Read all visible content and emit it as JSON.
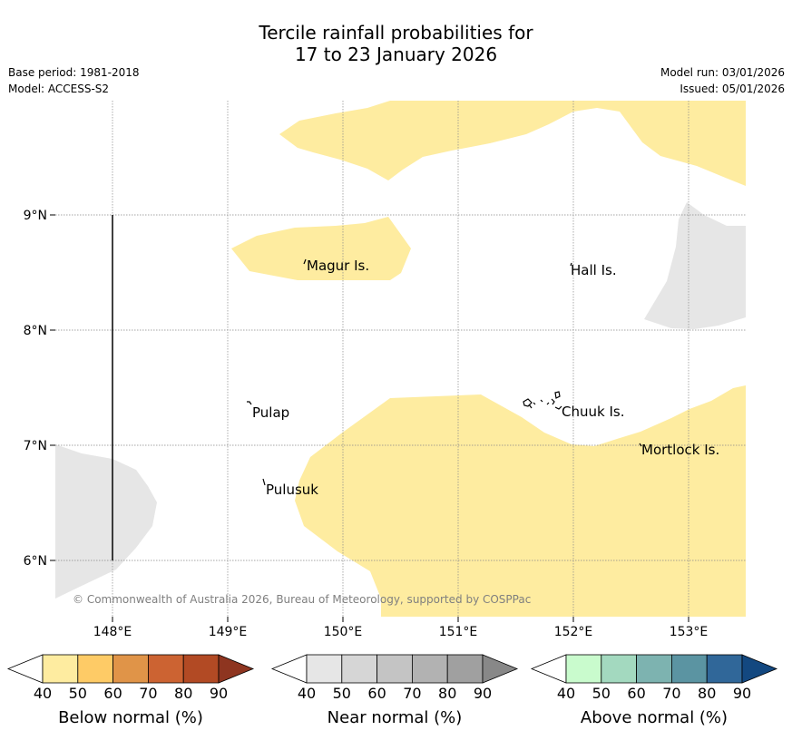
{
  "title": {
    "line1": "Tercile rainfall probabilities for",
    "line2": "17 to 23 January 2026"
  },
  "meta": {
    "base_period": "Base period: 1981-2018",
    "model": "Model: ACCESS-S2",
    "model_run": "Model run: 03/01/2026",
    "issued": "Issued: 05/01/2026"
  },
  "map": {
    "lat_labels": [
      "9°N",
      "8°N",
      "7°N",
      "6°N"
    ],
    "lon_labels": [
      "148°E",
      "149°E",
      "150°E",
      "151°E",
      "152°E",
      "153°E"
    ],
    "places": [
      "Magur Is.",
      "Hall Is.",
      "Pulap",
      "Chuuk Is.",
      "Mortlock Is.",
      "Pulusuk"
    ],
    "copyright": "© Commonwealth of Australia 2026, Bureau of Meteorology, supported by COSPPac",
    "colors": {
      "below_40": "#feeca0",
      "near_40": "#e6e6e6"
    }
  },
  "colorbars": [
    {
      "label": "Below normal (%)",
      "ticks": [
        "40",
        "50",
        "60",
        "70",
        "80",
        "90"
      ],
      "colors": [
        "#ffffff",
        "#feeca0",
        "#fecb66",
        "#e09448",
        "#cc6332",
        "#b24a24",
        "#8e3520"
      ]
    },
    {
      "label": "Near normal (%)",
      "ticks": [
        "40",
        "50",
        "60",
        "70",
        "80",
        "90"
      ],
      "colors": [
        "#ffffff",
        "#e6e6e6",
        "#d6d6d6",
        "#c4c4c4",
        "#b2b2b2",
        "#a0a0a0",
        "#888888"
      ]
    },
    {
      "label": "Above normal (%)",
      "ticks": [
        "40",
        "50",
        "60",
        "70",
        "80",
        "90"
      ],
      "colors": [
        "#ffffff",
        "#c9fbcd",
        "#a3d9bf",
        "#7db3b0",
        "#5b94a2",
        "#306799",
        "#134880"
      ]
    }
  ]
}
